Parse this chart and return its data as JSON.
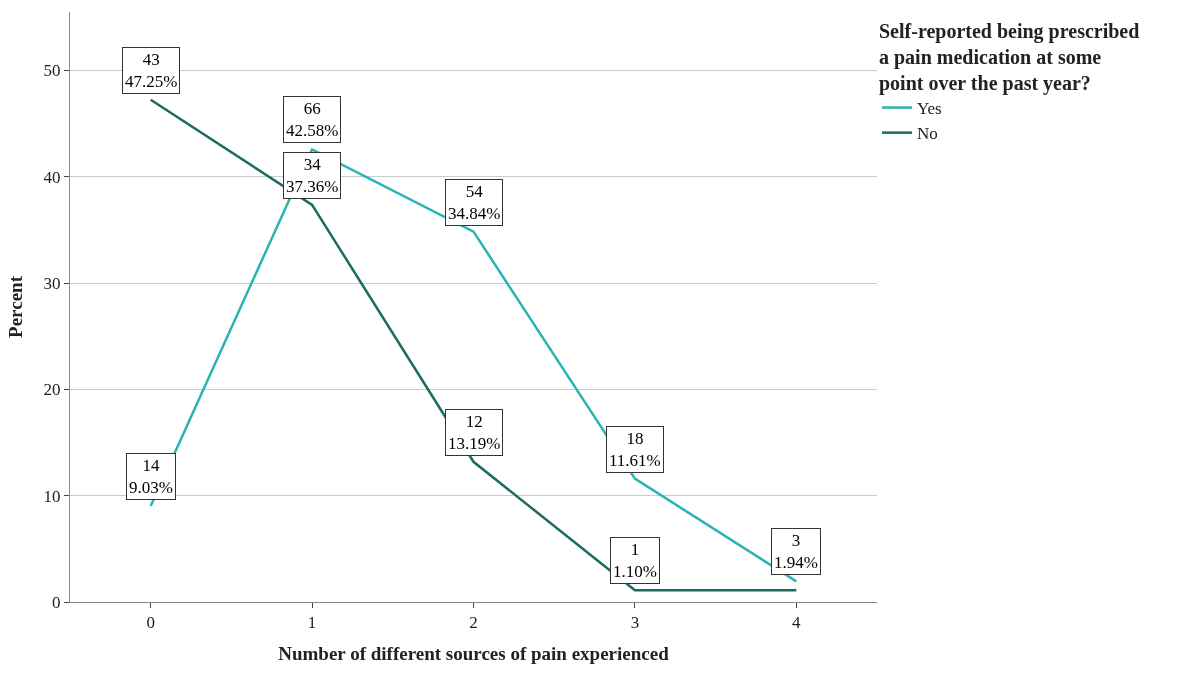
{
  "chart_data": {
    "type": "line",
    "xlabel": "Number of different sources of pain experienced",
    "ylabel": "Percent",
    "legend_title": "Self-reported being prescribed\na pain medication at some\npoint over the past year?",
    "categories": [
      "0",
      "1",
      "2",
      "3",
      "4"
    ],
    "series": [
      {
        "name": "Yes",
        "color": "#2ab3b3",
        "values": [
          9.03,
          42.58,
          34.84,
          11.61,
          1.94
        ],
        "value_labels": [
          "14\n9.03%",
          "66\n42.58%",
          "54\n34.84%",
          "18\n11.61%",
          "3\n1.94%"
        ]
      },
      {
        "name": "No",
        "color": "#1b6b63",
        "values": [
          47.25,
          37.36,
          13.19,
          1.1,
          1.1
        ],
        "value_labels": [
          "43\n47.25%",
          "34\n37.36%",
          "12\n13.19%",
          "1\n1.10%",
          null
        ]
      }
    ],
    "ylim": [
      0,
      55.5
    ],
    "yticks": [
      0,
      10,
      20,
      30,
      40,
      50
    ],
    "grid": "y",
    "legend": "top right",
    "marker": "none",
    "line_style": "solid"
  }
}
